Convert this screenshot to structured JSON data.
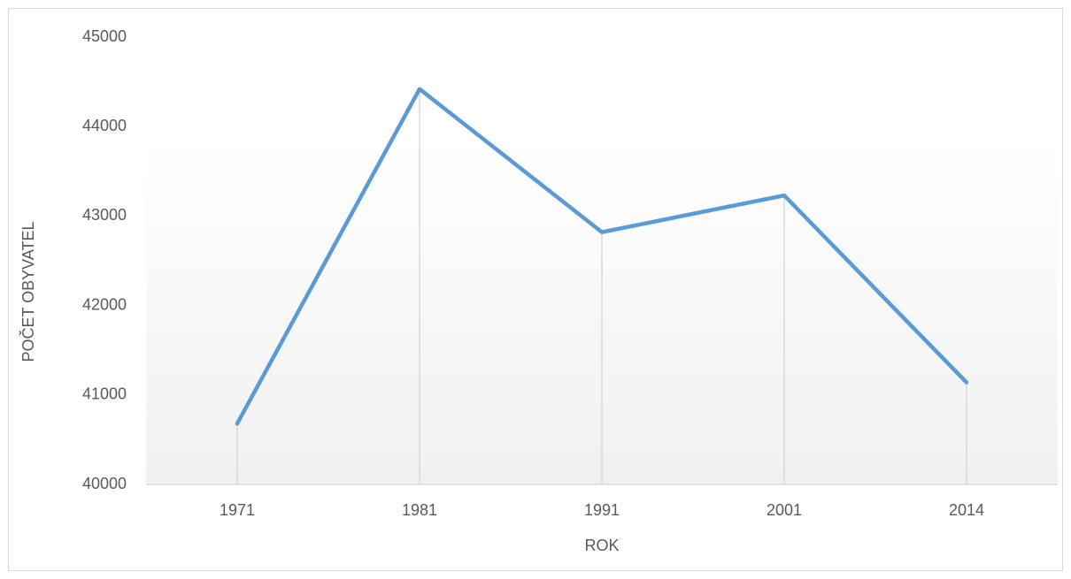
{
  "chart_data": {
    "type": "line",
    "x_label": "ROK",
    "y_label": "POČET OBYVATEL",
    "categories": [
      "1971",
      "1981",
      "1991",
      "2001",
      "2014"
    ],
    "values": [
      40680,
      44420,
      42820,
      43230,
      41140
    ],
    "color": "#5b9bd5",
    "ylim": [
      40000,
      45000
    ],
    "yticks": [
      40000,
      41000,
      42000,
      43000,
      44000,
      45000
    ],
    "grid": false,
    "drop_lines": true
  }
}
